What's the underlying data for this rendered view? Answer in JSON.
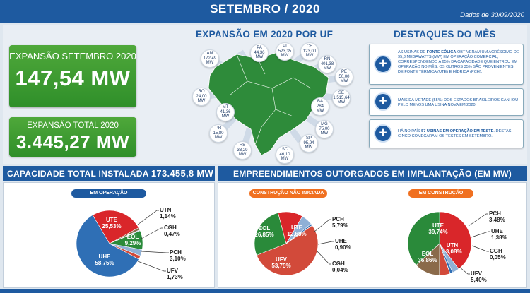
{
  "header": {
    "title": "SETEMBRO / 2020",
    "date": "Dados de 30/09/2020"
  },
  "expansion": {
    "month_label": "EXPANSÃO SETEMBRO 2020",
    "month_value": "147,54 MW",
    "total_label": "EXPANSÃO TOTAL 2020",
    "total_value": "3.445,27 MW"
  },
  "map": {
    "title": "EXPANSÃO EM 2020 POR UF",
    "states": [
      {
        "uf": "AM",
        "value": "172,49",
        "unit": "MW"
      },
      {
        "uf": "PA",
        "value": "44,36",
        "unit": "MW"
      },
      {
        "uf": "PI",
        "value": "523,35",
        "unit": "MW"
      },
      {
        "uf": "CE",
        "value": "123,00",
        "unit": "MW"
      },
      {
        "uf": "RN",
        "value": "401,38",
        "unit": "MW"
      },
      {
        "uf": "PE",
        "value": "50,00",
        "unit": "MW"
      },
      {
        "uf": "SE",
        "value": "1.515,64",
        "unit": "MW"
      },
      {
        "uf": "BA",
        "value": "284",
        "unit": "MW"
      },
      {
        "uf": "RO",
        "value": "24,00",
        "unit": "MW"
      },
      {
        "uf": "MT",
        "value": "41,36",
        "unit": "MW"
      },
      {
        "uf": "PR",
        "value": "15,80",
        "unit": "MW"
      },
      {
        "uf": "RS",
        "value": "33,29",
        "unit": "MW"
      },
      {
        "uf": "SC",
        "value": "46,10",
        "unit": "MW"
      },
      {
        "uf": "SP",
        "value": "95,94",
        "unit": "MW"
      },
      {
        "uf": "MG",
        "value": "75,00",
        "unit": "MW"
      }
    ]
  },
  "highlights": {
    "title": "DESTAQUES DO MÊS",
    "items": [
      {
        "pre": "AS USINAS DE ",
        "bold": "FONTE EÓLICA",
        "post": " OBTIVERAM UM ACRÉSCIMO DE 95,3 MEGAWATTS (MW) EM OPERAÇÃO COMERCIAL, CORRESPONDENDO A 65% DA CAPACIDADE QUE ENTROU EM OPERAÇÃO NO MÊS. OS OUTROS 35% SÃO PROVENIENTES DE FONTE TÉRMICA (UTE) E HÍDRICA (PCH)."
      },
      {
        "pre": "MAIS DA METADE (55%) DOS ESTADOS BRASILEIROS GANHOU PELO MENOS UMA USINA NOVA EM 2020.",
        "bold": "",
        "post": ""
      },
      {
        "pre": "HÁ NO PAÍS ",
        "bold": "57 USINAS EM OPERAÇÃO EM TESTE",
        "post": ". DESTAS, CINCO COMEÇARAM OS TESTES EM SETEMBRO."
      }
    ],
    "icon": "plus-icon"
  },
  "capacity": {
    "title": "CAPACIDADE TOTAL INSTALADA",
    "value": "173.455,8 MW",
    "pill": "EM OPERAÇÃO"
  },
  "grants": {
    "title": "EMPREENDIMENTOS OUTORGADOS EM IMPLANTAÇÃO (EM MW)",
    "pill_not_started": "CONSTRUÇÃO NÃO INICIADA",
    "pill_in_construction": "EM CONSTRUÇÃO"
  },
  "colors": {
    "UHE": "#2f6fb5",
    "UTE": "#d9262a",
    "EOL": "#2a8a3a",
    "UFV": "#d24a3a",
    "PCH": "#8fb0d6",
    "CGH": "#b9cce4",
    "UTN": "#8a6a4a",
    "brand": "#1e5aa0",
    "pill_blue": "#1e5aa0",
    "pill_orange": "#f07020"
  },
  "chart_data": [
    {
      "type": "pie",
      "title": "EM OPERAÇÃO",
      "categories": [
        "UHE",
        "UTE",
        "UTN",
        "CGH",
        "EOL",
        "PCH",
        "UFV"
      ],
      "values": [
        58.75,
        25.53,
        1.14,
        0.47,
        9.29,
        3.1,
        1.73
      ],
      "labels": [
        "58,75%",
        "25,53%",
        "1,14%",
        "0,47%",
        "9,29%",
        "3,10%",
        "1,73%"
      ]
    },
    {
      "type": "pie",
      "title": "CONSTRUÇÃO NÃO INICIADA",
      "categories": [
        "UFV",
        "EOL",
        "UTE",
        "PCH",
        "UHE",
        "CGH"
      ],
      "values": [
        53.75,
        26.85,
        12.68,
        5.79,
        0.9,
        0.04
      ],
      "labels": [
        "53,75%",
        "26,85%",
        "12,68%",
        "5,79%",
        "0,90%",
        "0,04%"
      ]
    },
    {
      "type": "pie",
      "title": "EM CONSTRUÇÃO",
      "categories": [
        "UTE",
        "PCH",
        "UHE",
        "CGH",
        "UFV",
        "UTN",
        "EOL"
      ],
      "values": [
        39.74,
        3.48,
        1.38,
        0.05,
        5.4,
        13.08,
        36.86
      ],
      "labels": [
        "39,74%",
        "3,48%",
        "1,38%",
        "0,05%",
        "5,40%",
        "13,08%",
        "36,86%"
      ]
    }
  ]
}
